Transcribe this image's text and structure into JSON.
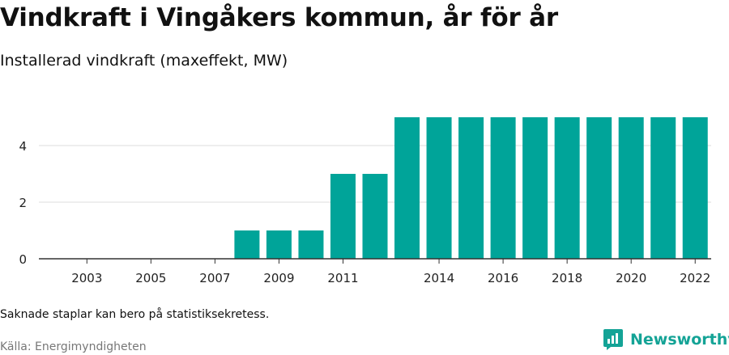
{
  "title": "Vindkraft i Vingåkers kommun, år för år",
  "subtitle": "Installerad vindkraft (maxeffekt, MW)",
  "note": "Saknade staplar kan bero på statistiksekretess.",
  "source": "Källa: Energimyndigheten",
  "brand": "Newsworthy",
  "colors": {
    "bar": "#00a499",
    "brand": "#14a396",
    "grid": "#dddddd",
    "axis": "#333333"
  },
  "chart_data": {
    "type": "bar",
    "categories": [
      "2002",
      "2003",
      "2004",
      "2005",
      "2006",
      "2007",
      "2008",
      "2009",
      "2010",
      "2011",
      "2012",
      "2013",
      "2014",
      "2015",
      "2016",
      "2017",
      "2018",
      "2019",
      "2020",
      "2021",
      "2022"
    ],
    "x_tick_labels": [
      "2003",
      "2005",
      "2007",
      "2009",
      "2011",
      "2014",
      "2016",
      "2018",
      "2020",
      "2022"
    ],
    "values": [
      0,
      0,
      0,
      0,
      0,
      0,
      1,
      1,
      1,
      3,
      3,
      5,
      5,
      5,
      5,
      5,
      5,
      5,
      5,
      5,
      5
    ],
    "y_ticks": [
      0,
      2,
      4
    ],
    "ylim": [
      0,
      5.2
    ],
    "grid": true,
    "title": "Vindkraft i Vingåkers kommun, år för år",
    "ylabel": "",
    "xlabel": ""
  }
}
